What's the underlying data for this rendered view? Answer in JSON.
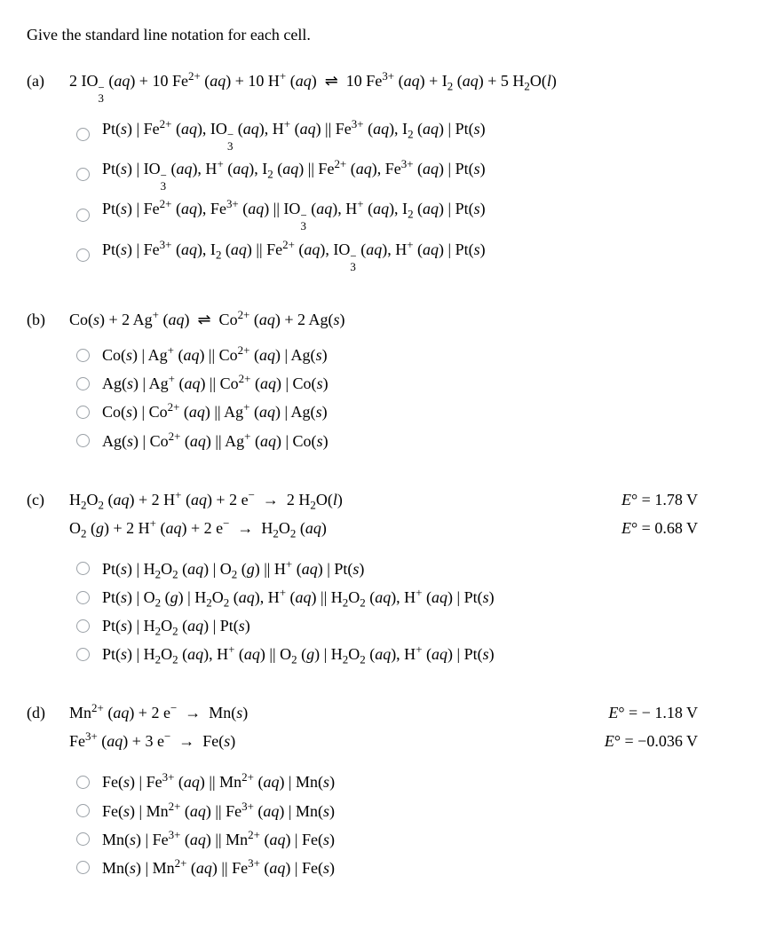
{
  "heading": "Give the standard line notation for each cell.",
  "questions": [
    {
      "label": "(a)",
      "equations": [
        "2 IO₃⁻ (aq) + 10 Fe²⁺ (aq) + 10 H⁺ (aq)  ⇌  10 Fe³⁺ (aq) + I₂ (aq) + 5 H₂O(l)"
      ],
      "options": [
        "Pt(s) | Fe²⁺ (aq), IO₃⁻ (aq), H⁺ (aq) || Fe³⁺ (aq), I₂ (aq) | Pt(s)",
        "Pt(s) | IO₃⁻ (aq), H⁺ (aq), I₂ (aq) || Fe²⁺ (aq), Fe³⁺ (aq) | Pt(s)",
        "Pt(s) | Fe²⁺ (aq), Fe³⁺ (aq) || IO₃⁻ (aq), H⁺ (aq), I₂ (aq) | Pt(s)",
        "Pt(s) | Fe³⁺ (aq), I₂ (aq) || Fe²⁺ (aq), IO₃⁻ (aq), H⁺ (aq) | Pt(s)"
      ]
    },
    {
      "label": "(b)",
      "equations": [
        "Co(s) + 2 Ag⁺ (aq)  ⇌  Co²⁺ (aq) + 2 Ag(s)"
      ],
      "options": [
        "Co(s) | Ag⁺ (aq) || Co²⁺ (aq) | Ag(s)",
        "Ag(s) | Ag⁺ (aq) || Co²⁺ (aq) | Co(s)",
        "Co(s) | Co²⁺ (aq) || Ag⁺ (aq) | Ag(s)",
        "Ag(s) | Co²⁺ (aq) || Ag⁺ (aq) | Co(s)"
      ]
    },
    {
      "label": "(c)",
      "equations_pair": [
        {
          "lhs": "H₂O₂ (aq) + 2 H⁺ (aq) + 2 e⁻  →  2 H₂O(l)",
          "rhs": "E°  =  1.78 V"
        },
        {
          "lhs": "O₂ (g) + 2 H⁺ (aq) + 2 e⁻  →  H₂O₂ (aq)",
          "rhs": "E°  =  0.68 V"
        }
      ],
      "options": [
        "Pt(s) | H₂O₂ (aq) | O₂ (g) || H⁺ (aq) | Pt(s)",
        "Pt(s) | O₂ (g) | H₂O₂ (aq), H⁺ (aq) || H₂O₂ (aq), H⁺ (aq) | Pt(s)",
        "Pt(s) | H₂O₂ (aq) | Pt(s)",
        "Pt(s) | H₂O₂ (aq), H⁺ (aq) || O₂ (g) | H₂O₂ (aq), H⁺ (aq) | Pt(s)"
      ]
    },
    {
      "label": "(d)",
      "equations_pair": [
        {
          "lhs": "Mn²⁺ (aq) + 2 e⁻  →  Mn(s)",
          "rhs": "E°  =  − 1.18 V"
        },
        {
          "lhs": "Fe³⁺ (aq) + 3 e⁻  →  Fe(s)",
          "rhs": "E°  =  −0.036 V"
        }
      ],
      "options": [
        "Fe(s) | Fe³⁺ (aq) || Mn²⁺ (aq) | Mn(s)",
        "Fe(s) | Mn²⁺ (aq) || Fe³⁺ (aq) | Mn(s)",
        "Mn(s) | Fe³⁺ (aq) || Mn²⁺ (aq) | Fe(s)",
        "Mn(s) | Mn²⁺ (aq) || Fe³⁺ (aq) | Fe(s)"
      ]
    }
  ]
}
